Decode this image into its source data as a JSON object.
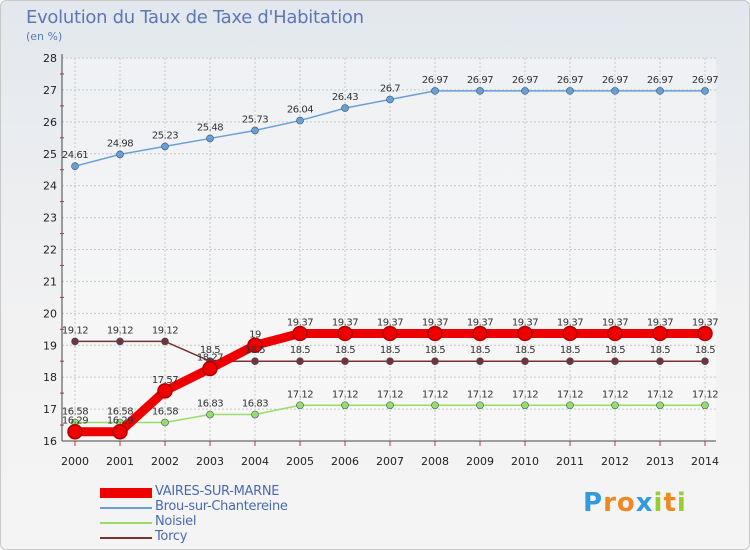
{
  "chart_data": {
    "type": "line",
    "title": "Evolution du Taux de Taxe d'Habitation",
    "subtitle": "(en %)",
    "x": [
      "2000",
      "2001",
      "2002",
      "2003",
      "2004",
      "2005",
      "2006",
      "2007",
      "2008",
      "2009",
      "2010",
      "2011",
      "2012",
      "2013",
      "2014"
    ],
    "ylim": [
      16,
      28
    ],
    "yticks": [
      "16",
      "17",
      "18",
      "19",
      "20",
      "21",
      "22",
      "23",
      "24",
      "25",
      "26",
      "27",
      "28"
    ],
    "series": [
      {
        "name": "VAIRES-SUR-MARNE",
        "color": "#ee0000",
        "values": [
          16.29,
          16.29,
          17.57,
          18.27,
          19,
          19.37,
          19.37,
          19.37,
          19.37,
          19.37,
          19.37,
          19.37,
          19.37,
          19.37,
          19.37
        ],
        "labels": [
          "16.29",
          "16.29",
          "17.57",
          "18.27",
          "19",
          "19.37",
          "19.37",
          "19.37",
          "19.37",
          "19.37",
          "19.37",
          "19.37",
          "19.37",
          "19.37",
          "19.37"
        ]
      },
      {
        "name": "Brou-sur-Chantereine",
        "color": "#6b9fd4",
        "values": [
          24.61,
          24.98,
          25.23,
          25.48,
          25.73,
          26.04,
          26.43,
          26.7,
          26.97,
          26.97,
          26.97,
          26.97,
          26.97,
          26.97,
          26.97
        ],
        "labels": [
          "24.61",
          "24.98",
          "25.23",
          "25.48",
          "25.73",
          "26.04",
          "26.43",
          "26.7",
          "26.97",
          "26.97",
          "26.97",
          "26.97",
          "26.97",
          "26.97",
          "26.97"
        ]
      },
      {
        "name": "Noisiel",
        "color": "#99dd66",
        "values": [
          16.58,
          16.58,
          16.58,
          16.83,
          16.83,
          17.12,
          17.12,
          17.12,
          17.12,
          17.12,
          17.12,
          17.12,
          17.12,
          17.12,
          17.12
        ],
        "labels": [
          "16.58",
          "16.58",
          "16.58",
          "16.83",
          "16.83",
          "17.12",
          "17.12",
          "17.12",
          "17.12",
          "17.12",
          "17.12",
          "17.12",
          "17.12",
          "17.12",
          "17.12"
        ]
      },
      {
        "name": "Torcy",
        "color": "#773333",
        "values": [
          19.12,
          19.12,
          19.12,
          18.5,
          18.5,
          18.5,
          18.5,
          18.5,
          18.5,
          18.5,
          18.5,
          18.5,
          18.5,
          18.5,
          18.5
        ],
        "labels": [
          "19.12",
          "19.12",
          "19.12",
          "18.5",
          "18.5",
          "18.5",
          "18.5",
          "18.5",
          "18.5",
          "18.5",
          "18.5",
          "18.5",
          "18.5",
          "18.5",
          "18.5"
        ]
      }
    ]
  },
  "logo": {
    "letters": [
      "P",
      "r",
      "o",
      "x",
      "i",
      "t",
      "i"
    ],
    "colors": [
      "#3399dd",
      "#ee8822",
      "#ee8822",
      "#3399dd",
      "#99cc33",
      "#ee8822",
      "#99cc33"
    ]
  }
}
